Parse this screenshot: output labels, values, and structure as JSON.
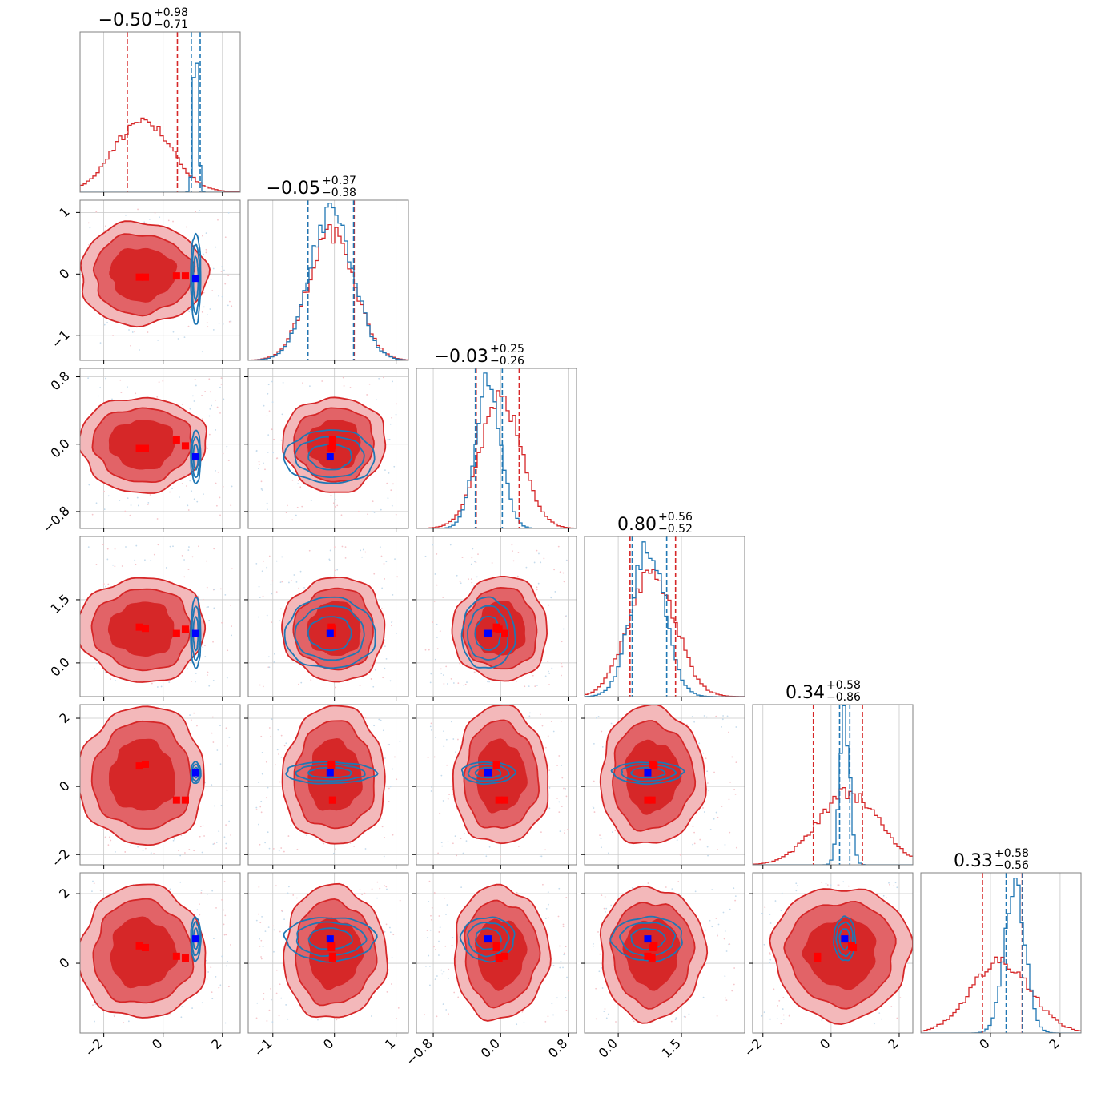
{
  "chart_data": {
    "type": "corner",
    "parameters": [
      {
        "index": 0,
        "range": [
          -2.8,
          2.6
        ],
        "ticks": [
          -2,
          0,
          2
        ],
        "tick_labels": [
          "−2",
          "0",
          "2"
        ],
        "title": {
          "median": "−0.50",
          "plus": "+0.98",
          "minus": "−0.71"
        },
        "red_hist": {
          "center": -0.7,
          "sigma": 0.95
        },
        "blue_hist": {
          "center": 1.1,
          "sigma": 0.08
        },
        "red_quantiles": [
          -1.21,
          -0.5,
          0.48
        ],
        "blue_quantiles": [
          0.95,
          1.1,
          1.25
        ]
      },
      {
        "index": 1,
        "range": [
          -1.4,
          1.2
        ],
        "ticks": [
          -1,
          0,
          1
        ],
        "tick_labels": [
          "−1",
          "0",
          "1"
        ],
        "title": {
          "median": "−0.05",
          "plus": "+0.37",
          "minus": "−0.38"
        },
        "red_hist": {
          "center": -0.05,
          "sigma": 0.37
        },
        "blue_hist": {
          "center": -0.05,
          "sigma": 0.35
        },
        "red_quantiles": [
          -0.43,
          -0.05,
          0.32
        ],
        "blue_quantiles": [
          -0.43,
          -0.05,
          0.31
        ]
      },
      {
        "index": 1,
        "range": [
          -1.0,
          0.9
        ],
        "ticks": [
          -0.8,
          0.0,
          0.8
        ],
        "tick_labels": [
          "−0.8",
          "0.0",
          "0.8"
        ],
        "title": {
          "median": "−0.03",
          "plus": "+0.25",
          "minus": "−0.26"
        },
        "red_hist": {
          "center": 0.0,
          "sigma": 0.25
        },
        "blue_hist": {
          "center": -0.15,
          "sigma": 0.15
        },
        "red_quantiles": [
          -0.29,
          -0.03,
          0.22
        ],
        "blue_quantiles": [
          -0.3,
          -0.15,
          0.02
        ]
      },
      {
        "index": 3,
        "range": [
          -0.8,
          3.0
        ],
        "ticks": [
          0.0,
          1.5
        ],
        "tick_labels": [
          "0.0",
          "1.5"
        ],
        "title": {
          "median": "0.80",
          "plus": "+0.56",
          "minus": "−0.52"
        },
        "red_hist": {
          "center": 0.8,
          "sigma": 0.55
        },
        "blue_hist": {
          "center": 0.7,
          "sigma": 0.4
        },
        "red_quantiles": [
          0.28,
          0.8,
          1.36
        ],
        "blue_quantiles": [
          0.33,
          0.7,
          1.15
        ]
      },
      {
        "index": 4,
        "range": [
          -2.3,
          2.4
        ],
        "ticks": [
          -2,
          0,
          2
        ],
        "tick_labels": [
          "−2",
          "0",
          "2"
        ],
        "title": {
          "median": "0.34",
          "plus": "+0.58",
          "minus": "−0.86"
        },
        "red_hist": {
          "center": 0.5,
          "sigma": 0.9
        },
        "blue_hist": {
          "center": 0.4,
          "sigma": 0.15
        },
        "red_quantiles": [
          -0.52,
          0.34,
          0.92
        ],
        "blue_quantiles": [
          0.25,
          0.4,
          0.55
        ]
      },
      {
        "index": 5,
        "range": [
          -2.0,
          2.6
        ],
        "ticks": [
          0,
          2
        ],
        "tick_labels": [
          "0",
          "2"
        ],
        "title": {
          "median": "0.33",
          "plus": "+0.58",
          "minus": "−0.56"
        },
        "red_hist": {
          "center": 0.3,
          "sigma": 0.85
        },
        "blue_hist": {
          "center": 0.7,
          "sigma": 0.3
        },
        "red_quantiles": [
          -0.23,
          0.33,
          0.91
        ],
        "blue_quantiles": [
          0.45,
          0.7,
          0.92
        ]
      }
    ],
    "red_posterior_center": [
      -0.7,
      0.0,
      0.0,
      0.8,
      0.3,
      0.3
    ],
    "blue_posterior_center": [
      1.1,
      -0.07,
      -0.15,
      0.7,
      0.4,
      0.7
    ],
    "blue_marker": [
      1.1,
      -0.07,
      -0.15,
      0.7,
      0.4,
      0.7
    ],
    "red_markers": [
      [
        -0.8,
        -0.05,
        -0.05,
        0.85,
        0.6,
        0.5
      ],
      [
        -0.6,
        -0.05,
        -0.05,
        0.82,
        0.65,
        0.45
      ],
      [
        0.45,
        -0.03,
        0.05,
        0.7,
        -0.4,
        0.2
      ],
      [
        0.75,
        -0.03,
        -0.02,
        0.8,
        -0.4,
        0.15
      ]
    ],
    "colors": {
      "red": "#d62728",
      "red_fill": "#e26367",
      "red_light": "#f3b8ba",
      "blue": "#1f77b4",
      "marker_blue": "#0000ff",
      "marker_red": "#ff0000",
      "grid": "#c8c8c8",
      "frame": "#808080"
    }
  }
}
